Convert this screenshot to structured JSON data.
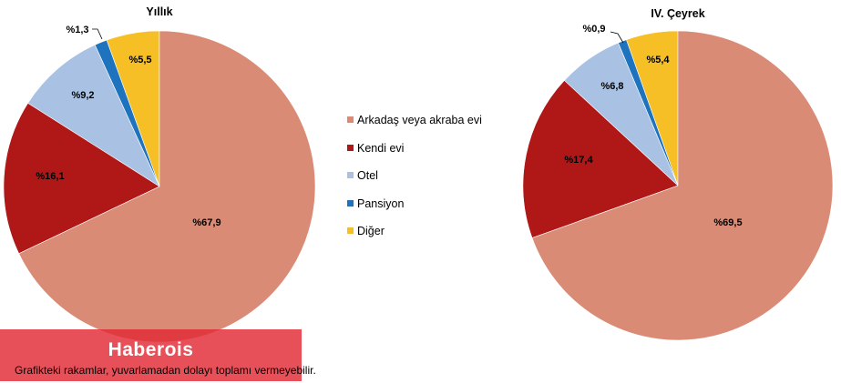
{
  "chart_data": [
    {
      "type": "pie",
      "title": "Yıllık",
      "categories": [
        "Arkadaş veya akraba evi",
        "Kendi evi",
        "Otel",
        "Pansiyon",
        "Diğer"
      ],
      "values": [
        67.9,
        16.1,
        9.2,
        1.3,
        5.5
      ],
      "labels": [
        "%67,9",
        "%16,1",
        "%9,2",
        "%1,3",
        "%5,5"
      ]
    },
    {
      "type": "pie",
      "title": "IV. Çeyrek",
      "categories": [
        "Arkadaş veya akraba evi",
        "Kendi evi",
        "Otel",
        "Pansiyon",
        "Diğer"
      ],
      "values": [
        69.5,
        17.4,
        6.8,
        0.9,
        5.4
      ],
      "labels": [
        "%69,5",
        "%17,4",
        "%6,8",
        "%0,9",
        "%5,4"
      ]
    }
  ],
  "legend": {
    "position": "center",
    "items": [
      {
        "label": "Arkadaş veya akraba evi",
        "color": "#D98B76"
      },
      {
        "label": "Kendi evi",
        "color": "#B01818"
      },
      {
        "label": "Otel",
        "color": "#A9C2E3"
      },
      {
        "label": "Pansiyon",
        "color": "#1E73BE"
      },
      {
        "label": "Diğer",
        "color": "#F6BF26"
      }
    ]
  },
  "colors": [
    "#D98B76",
    "#B01818",
    "#A9C2E3",
    "#1E73BE",
    "#F6BF26"
  ],
  "watermark": "Haberois",
  "footnote": "Grafikteki rakamlar, yuvarlamadan dolayı toplamı vermeyebilir."
}
